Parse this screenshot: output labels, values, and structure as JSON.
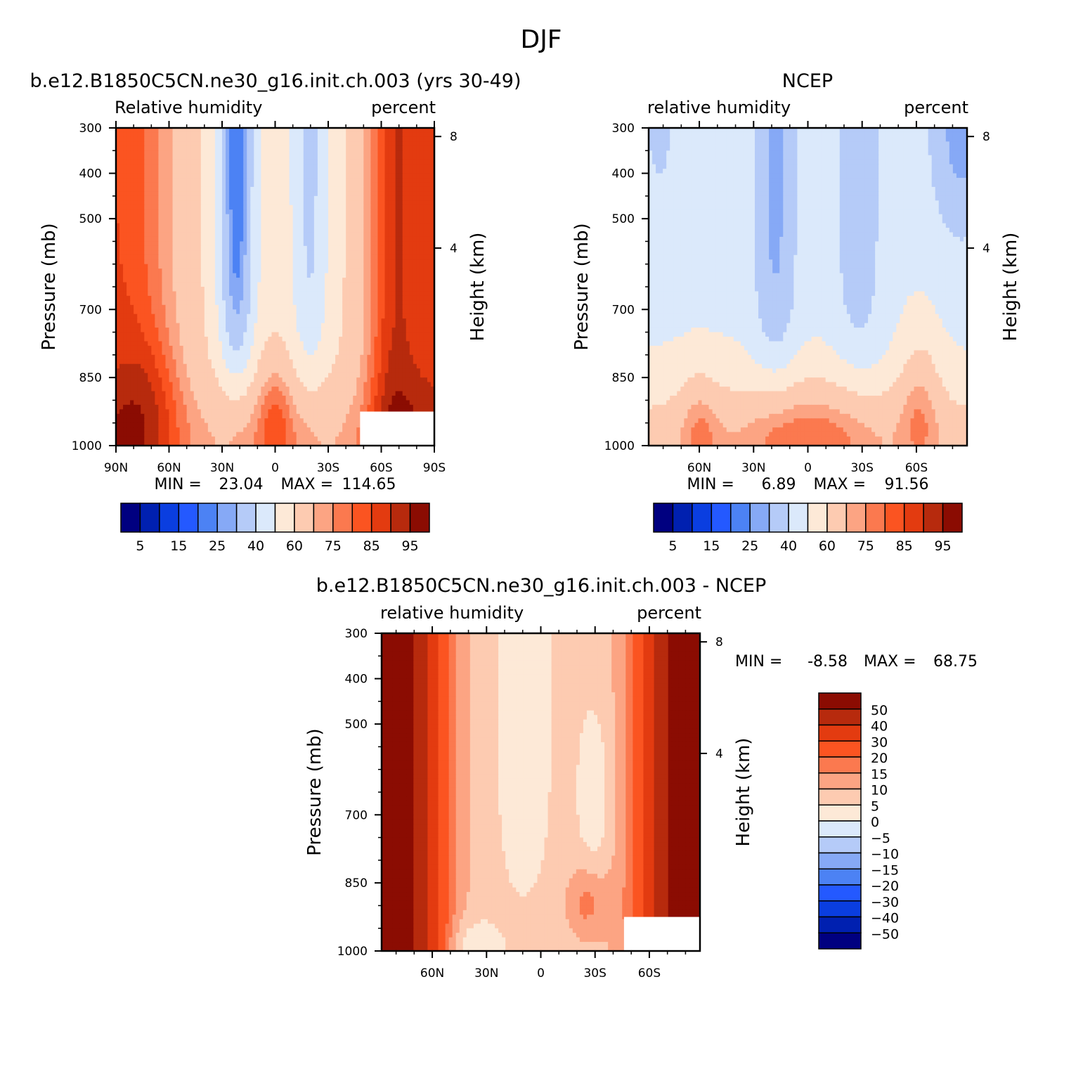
{
  "figure": {
    "title": "DJF"
  },
  "colors": {
    "main": [
      "#000080",
      "#0020b0",
      "#0a3ee0",
      "#2459ff",
      "#4c82f4",
      "#86a9f6",
      "#b5cbf8",
      "#dbe9fb",
      "#fde9d7",
      "#fdcbb1",
      "#fca483",
      "#fb794f",
      "#fb5421",
      "#e33b10",
      "#b72a0d",
      "#8b0c02"
    ],
    "diff": [
      "#000080",
      "#0020b0",
      "#0a3ee0",
      "#2459ff",
      "#4c82f4",
      "#86a9f6",
      "#b5cbf8",
      "#dbe9fb",
      "#fde9d7",
      "#fdcbb1",
      "#fca483",
      "#fb794f",
      "#fb5421",
      "#e33b10",
      "#b72a0d",
      "#8b0c02"
    ]
  },
  "chart_data": [
    {
      "type": "heatmap",
      "panel": "model",
      "title": "b.e12.B1850C5CN.ne30_g16.init.ch.003 (yrs 30-49)",
      "left_label": "Relative humidity",
      "right_label": "percent",
      "ylabel": "Pressure (mb)",
      "y2label": "Height (km)",
      "yticks": [
        "300",
        "400",
        "500",
        "700",
        "850",
        "1000"
      ],
      "yticks_values": [
        300,
        400,
        500,
        700,
        850,
        1000
      ],
      "y2ticks": [
        "8",
        "4"
      ],
      "y2ticks_values": [
        8,
        4
      ],
      "xticks": [
        "90N",
        "60N",
        "30N",
        "0",
        "30S",
        "60S",
        "90S"
      ],
      "xticks_values": [
        90,
        60,
        30,
        0,
        -30,
        -60,
        -90
      ],
      "xlim": [
        90,
        -90
      ],
      "ylim": [
        300,
        1000
      ],
      "min_label": "MIN =",
      "min_value": "23.04",
      "max_label": "MAX =",
      "max_value": "114.65",
      "levels": [
        5,
        10,
        15,
        20,
        25,
        30,
        40,
        50,
        60,
        70,
        75,
        80,
        85,
        90,
        95
      ],
      "colorbar_labels": [
        "5",
        "15",
        "25",
        "40",
        "60",
        "75",
        "85",
        "95"
      ],
      "missing_region": {
        "lat": [
          -48,
          -90
        ],
        "pressure": [
          925,
          1000
        ]
      }
    },
    {
      "type": "heatmap",
      "panel": "obs",
      "title": "NCEP",
      "left_label": "relative humidity",
      "right_label": "percent",
      "ylabel": "Pressure (mb)",
      "y2label": "Height (km)",
      "yticks": [
        "300",
        "400",
        "500",
        "700",
        "850",
        "1000"
      ],
      "yticks_values": [
        300,
        400,
        500,
        700,
        850,
        1000
      ],
      "y2ticks": [
        "8",
        "4"
      ],
      "y2ticks_values": [
        8,
        4
      ],
      "xticks": [
        "60N",
        "30N",
        "0",
        "30S",
        "60S"
      ],
      "xticks_values": [
        60,
        30,
        0,
        -30,
        -60
      ],
      "xlim": [
        88,
        -88
      ],
      "ylim": [
        300,
        1000
      ],
      "min_label": "MIN =",
      "min_value": "6.89",
      "max_label": "MAX =",
      "max_value": "91.56",
      "levels": [
        5,
        10,
        15,
        20,
        25,
        30,
        40,
        50,
        60,
        70,
        75,
        80,
        85,
        90,
        95
      ],
      "colorbar_labels": [
        "5",
        "15",
        "25",
        "40",
        "60",
        "75",
        "85",
        "95"
      ]
    },
    {
      "type": "heatmap",
      "panel": "diff",
      "title": "b.e12.B1850C5CN.ne30_g16.init.ch.003 - NCEP",
      "left_label": "relative humidity",
      "right_label": "percent",
      "ylabel": "Pressure (mb)",
      "y2label": "Height (km)",
      "yticks": [
        "300",
        "400",
        "500",
        "700",
        "850",
        "1000"
      ],
      "yticks_values": [
        300,
        400,
        500,
        700,
        850,
        1000
      ],
      "y2ticks": [
        "8",
        "4"
      ],
      "y2ticks_values": [
        8,
        4
      ],
      "xticks": [
        "60N",
        "30N",
        "0",
        "30S",
        "60S"
      ],
      "xticks_values": [
        60,
        30,
        0,
        -30,
        -60
      ],
      "xlim": [
        88,
        -88
      ],
      "ylim": [
        300,
        1000
      ],
      "min_label": "MIN =",
      "min_value": "-8.58",
      "max_label": "MAX =",
      "max_value": "68.75",
      "levels": [
        -50,
        -40,
        -30,
        -20,
        -15,
        -10,
        -5,
        0,
        5,
        10,
        15,
        20,
        30,
        40,
        50
      ],
      "colorbar_labels": [
        "50",
        "40",
        "30",
        "20",
        "15",
        "10",
        "5",
        "0",
        "-5",
        "-10",
        "-15",
        "-20",
        "-30",
        "-40",
        "-50"
      ],
      "missing_region": {
        "lat": [
          -46,
          -88
        ],
        "pressure": [
          925,
          1000
        ]
      }
    }
  ]
}
